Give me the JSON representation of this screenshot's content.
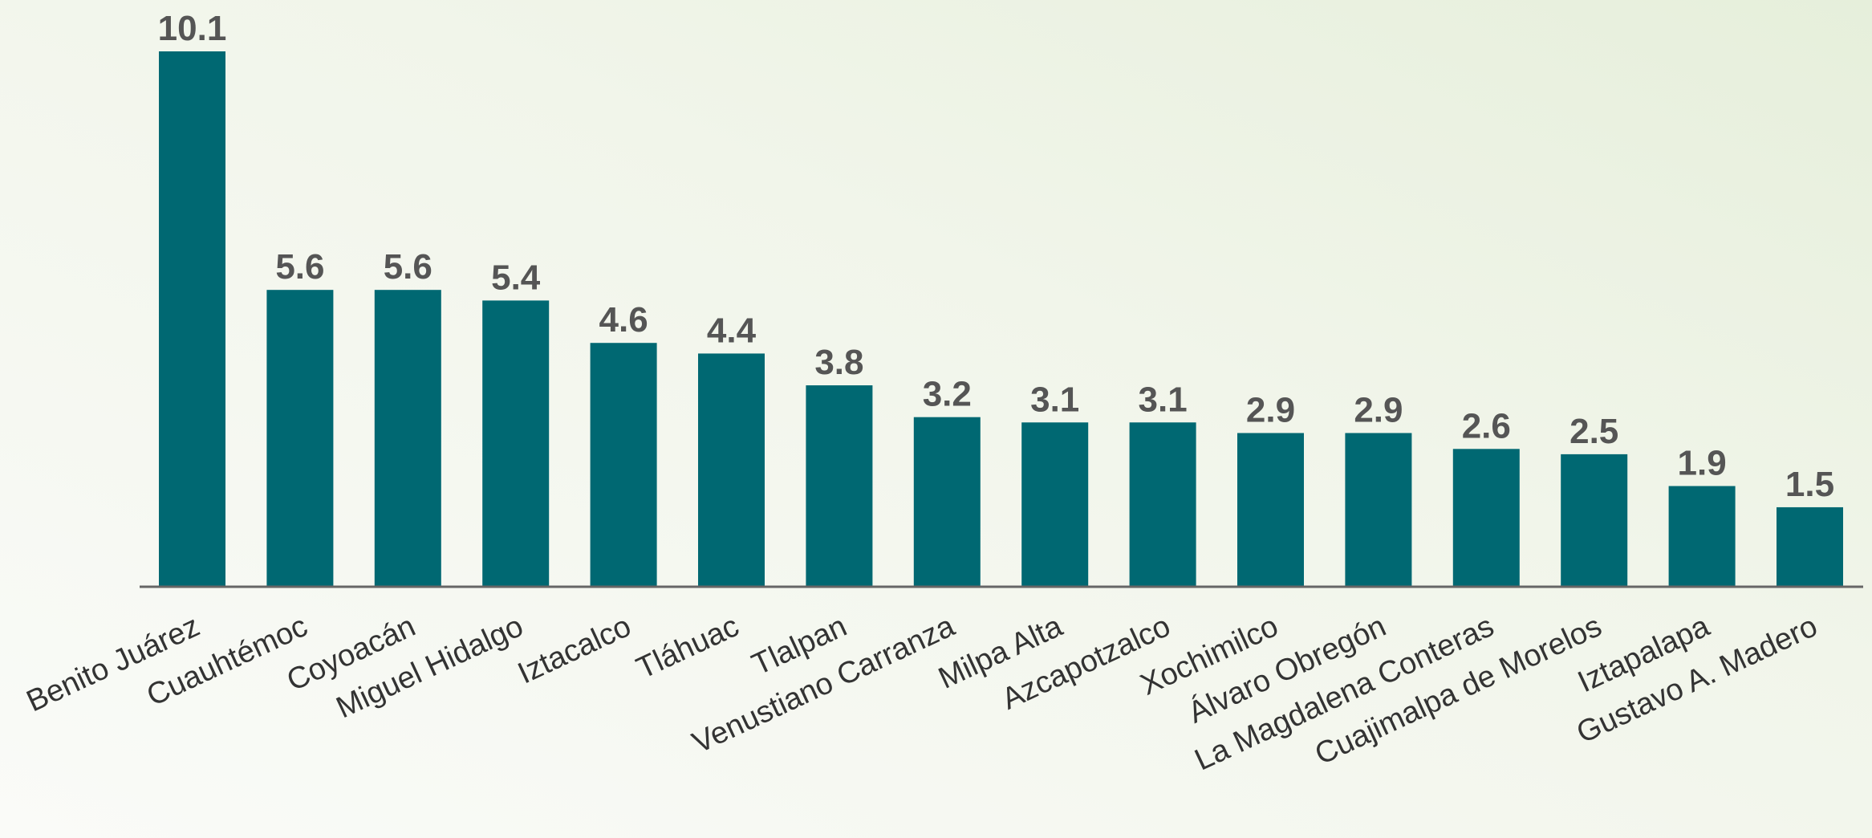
{
  "chart_data": {
    "type": "bar",
    "categories": [
      "Benito Juárez",
      "Cuauhtémoc",
      "Coyoacán",
      "Miguel Hidalgo",
      "Iztacalco",
      "Tláhuac",
      "Tlalpan",
      "Venustiano Carranza",
      "Milpa Alta",
      "Azcapotzalco",
      "Xochimilco",
      "Álvaro Obregón",
      "La Magdalena Conteras",
      "Cuajimalpa de Morelos",
      "Iztapalapa",
      "Gustavo A. Madero"
    ],
    "values": [
      10.1,
      5.6,
      5.6,
      5.4,
      4.6,
      4.4,
      3.8,
      3.2,
      3.1,
      3.1,
      2.9,
      2.9,
      2.6,
      2.5,
      1.9,
      1.5
    ],
    "color": "#006872"
  }
}
